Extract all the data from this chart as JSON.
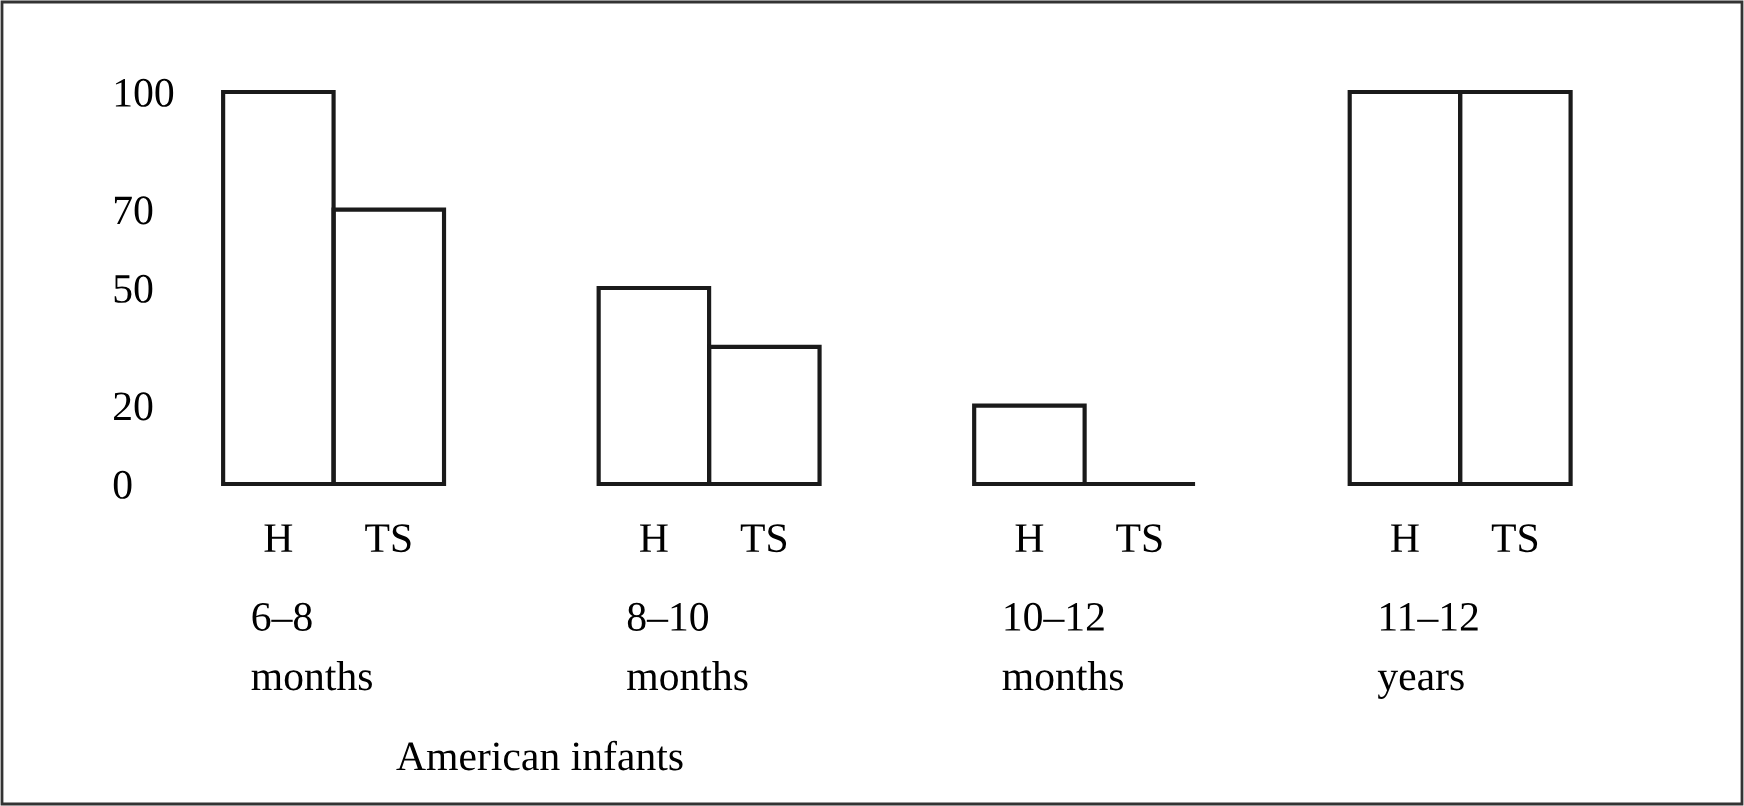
{
  "chart_data": {
    "type": "bar",
    "xlabel": "American infants",
    "categories": [
      "H",
      "TS",
      "H",
      "TS",
      "H",
      "TS",
      "H",
      "TS"
    ],
    "values": [
      100,
      70,
      50,
      35,
      20,
      0,
      100,
      100
    ],
    "color": "#1a1a1a",
    "ylim": [
      0,
      100
    ],
    "yticks": [
      0,
      20,
      50,
      70,
      100
    ],
    "grid": false,
    "legend": false,
    "annotations": [
      "6–8\nmonths",
      "8–10\nmonths",
      "10–12\nmonths",
      "11–12\nyears"
    ]
  }
}
